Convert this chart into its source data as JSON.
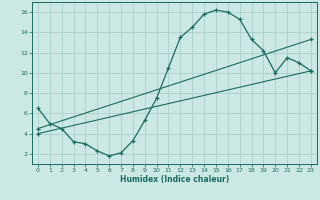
{
  "xlabel": "Humidex (Indice chaleur)",
  "background_color": "#cce8e4",
  "grid_color": "#aacfcb",
  "line_color": "#1a6b60",
  "xlim": [
    -0.5,
    23.5
  ],
  "ylim": [
    1.0,
    17.0
  ],
  "yticks": [
    2,
    4,
    6,
    8,
    10,
    12,
    14,
    16
  ],
  "xticks": [
    0,
    1,
    2,
    3,
    4,
    5,
    6,
    7,
    8,
    9,
    10,
    11,
    12,
    13,
    14,
    15,
    16,
    17,
    18,
    19,
    20,
    21,
    22,
    23
  ],
  "curve1_x": [
    0,
    1,
    2,
    3,
    4,
    5,
    6,
    7,
    8,
    9,
    10,
    11,
    12,
    13,
    14,
    15,
    16,
    17,
    18,
    19,
    20,
    21,
    22,
    23
  ],
  "curve1_y": [
    6.5,
    5.0,
    4.5,
    3.2,
    3.0,
    2.3,
    1.8,
    2.1,
    3.3,
    5.3,
    7.5,
    10.5,
    13.5,
    14.5,
    15.8,
    16.2,
    16.0,
    15.3,
    13.3,
    12.2,
    10.0,
    11.5,
    11.0,
    10.2
  ],
  "curve2_x": [
    0,
    23
  ],
  "curve2_y": [
    4.5,
    13.3
  ],
  "curve3_x": [
    0,
    23
  ],
  "curve3_y": [
    4.0,
    10.2
  ]
}
